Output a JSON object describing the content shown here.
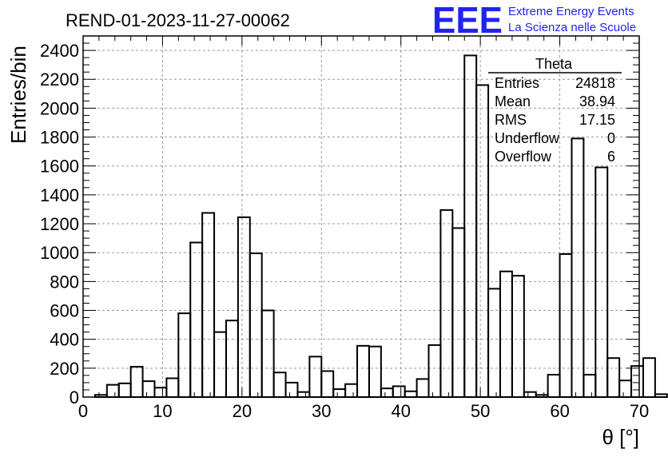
{
  "header": {
    "run_title": "REND-01-2023-11-27-00062",
    "logo_text": "EEE",
    "logo_line1": "Extreme Energy Events",
    "logo_line2": "La Scienza nelle Scuole"
  },
  "stats": {
    "title": "Theta",
    "rows": [
      {
        "label": "Entries",
        "value": "24818"
      },
      {
        "label": "Mean",
        "value": "38.94"
      },
      {
        "label": "RMS",
        "value": "17.15"
      },
      {
        "label": "Underflow",
        "value": "0"
      },
      {
        "label": "Overflow",
        "value": "6"
      }
    ]
  },
  "colors": {
    "logo": "#2323ee",
    "grid": "#999999",
    "line": "#000000"
  },
  "chart_data": {
    "type": "bar",
    "style": "step-histogram",
    "title": "REND-01-2023-11-27-00062",
    "xlabel": "θ [°]",
    "ylabel": "Entries/bin",
    "xlim": [
      0,
      70
    ],
    "ylim": [
      0,
      2500
    ],
    "grid": true,
    "x_ticks": [
      0,
      10,
      20,
      30,
      40,
      50,
      60,
      70
    ],
    "y_ticks": [
      0,
      200,
      400,
      600,
      800,
      1000,
      1200,
      1400,
      1600,
      1800,
      2000,
      2200,
      2400
    ],
    "bin_start": 0,
    "bin_width": 1.5,
    "values": [
      0,
      15,
      85,
      95,
      210,
      110,
      65,
      130,
      580,
      1070,
      1275,
      450,
      530,
      1245,
      995,
      600,
      170,
      100,
      35,
      280,
      180,
      55,
      90,
      355,
      350,
      60,
      75,
      40,
      125,
      360,
      1295,
      1170,
      2365,
      2160,
      750,
      870,
      840,
      35,
      15,
      155,
      990,
      1790,
      155,
      1590,
      270,
      115,
      215,
      270,
      20,
      0
    ]
  }
}
